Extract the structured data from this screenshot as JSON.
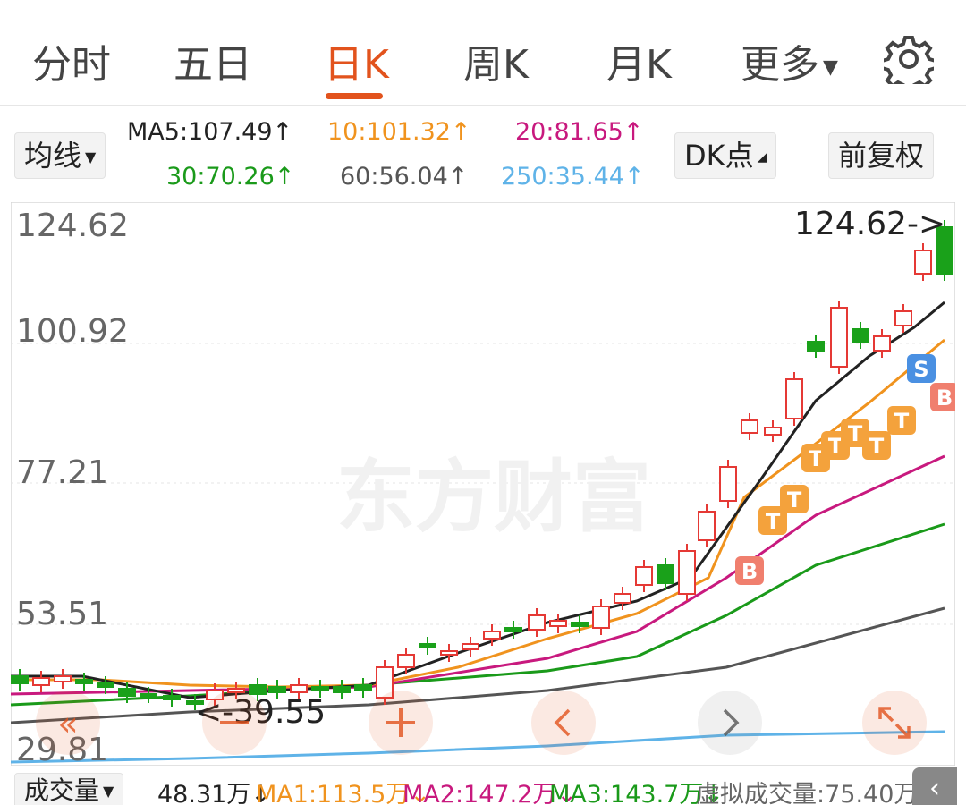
{
  "tabs": [
    {
      "label": "分时"
    },
    {
      "label": "五日"
    },
    {
      "label": "日K"
    },
    {
      "label": "周K"
    },
    {
      "label": "月K"
    },
    {
      "label": "更多"
    }
  ],
  "active_tab": "日K",
  "toolbar": {
    "indicator_label": "均线",
    "dk_label": "DK点",
    "adjust_label": "前复权"
  },
  "ma": [
    {
      "text": "MA5:107.49↑",
      "color": "#222222"
    },
    {
      "text": "10:101.32↑",
      "color": "#f0931e"
    },
    {
      "text": "20:81.65↑",
      "color": "#c8197e"
    },
    {
      "text": "30:70.26↑",
      "color": "#1a9a1a"
    },
    {
      "text": "60:56.04↑",
      "color": "#555555"
    },
    {
      "text": "250:35.44↑",
      "color": "#5fb3e8"
    }
  ],
  "chart": {
    "y_labels": [
      "124.62",
      "100.92",
      "77.21",
      "53.51",
      "29.81"
    ],
    "max_label": "124.62->",
    "min_label": "<-39.55",
    "watermark": "东方财富"
  },
  "volume": {
    "label": "成交量",
    "value": "48.31万↓",
    "ma1": "MA1:113.5万↓",
    "ma2": "MA2:147.2万↓",
    "ma3": "MA3:143.7万↓",
    "virtual": "虚拟成交量:75.40万"
  },
  "colors": {
    "accent": "#e2531d",
    "up": "#e53935",
    "down": "#1aa11a",
    "ma5": "#222222",
    "ma10": "#f0931e",
    "ma20": "#c8197e",
    "ma30": "#1a9a1a",
    "ma60": "#555555",
    "ma250": "#5fb3e8"
  },
  "icons": [
    "gear-icon",
    "double-left-icon",
    "minus-icon",
    "plus-icon",
    "left-icon",
    "right-icon",
    "expand-icon"
  ]
}
